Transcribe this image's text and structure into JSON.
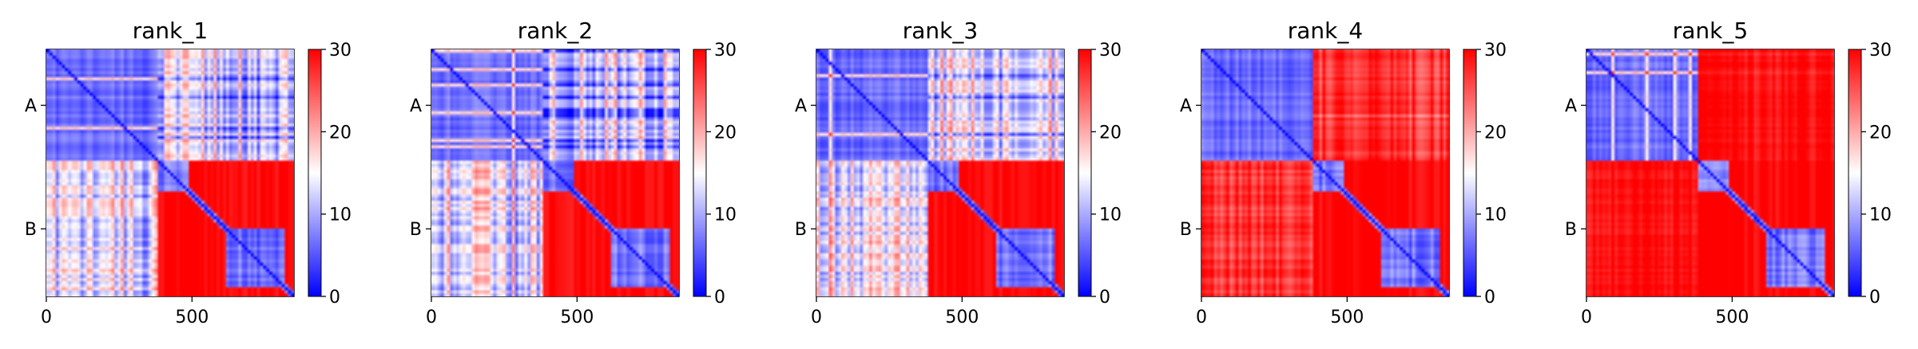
{
  "chart_data": {
    "type": "heatmap",
    "chains": [
      {
        "name": "A",
        "length": 385
      },
      {
        "name": "B",
        "length": 465
      }
    ],
    "total_length": 850,
    "x_ticks": [
      0,
      500
    ],
    "colorbar": {
      "min": 0,
      "max": 30,
      "ticks": [
        0,
        10,
        20,
        30
      ],
      "colors": [
        "#0000ff",
        "#ffffff",
        "#ff0000"
      ]
    },
    "panels": [
      {
        "title": "rank_1",
        "inter_chain_mean": 14,
        "variability": 9,
        "b_domain_split": 0.5
      },
      {
        "title": "rank_2",
        "inter_chain_mean": 14,
        "variability": 9,
        "b_domain_split": 0.5
      },
      {
        "title": "rank_3",
        "inter_chain_mean": 15,
        "variability": 9,
        "b_domain_split": 0.5
      },
      {
        "title": "rank_4",
        "inter_chain_mean": 27,
        "variability": 4,
        "b_domain_split": 0.5
      },
      {
        "title": "rank_5",
        "inter_chain_mean": 29,
        "variability": 2,
        "b_domain_split": 0.5
      }
    ]
  }
}
